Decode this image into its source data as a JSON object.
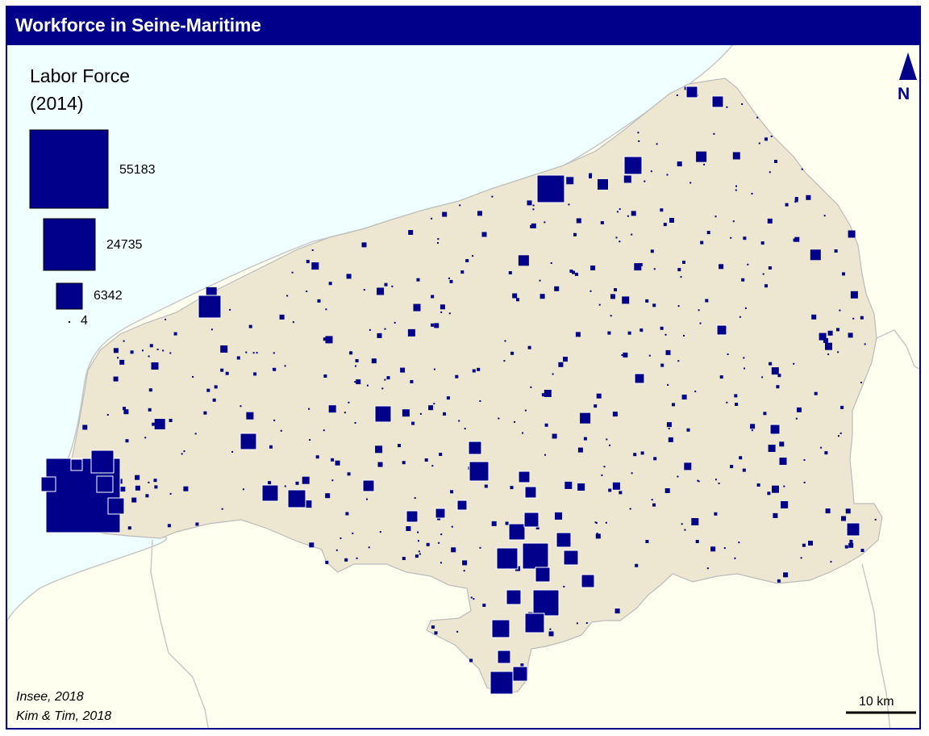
{
  "title": "Workforce in Seine-Maritime",
  "legend": {
    "title_line1": "Labor Force",
    "title_line2": "(2014)",
    "values": [
      "55183",
      "24735",
      "6342",
      "4"
    ]
  },
  "credits": {
    "line1": "Insee, 2018",
    "line2": "Kim & Tim, 2018"
  },
  "north_label": "N",
  "scale_label": "10 km",
  "colors": {
    "sea": "#f0ffff",
    "land_outside": "#fffff0",
    "department": "#ede6d0",
    "symbol": "#00008b",
    "frame": "#00008b",
    "border": "#bbbbbb"
  }
}
